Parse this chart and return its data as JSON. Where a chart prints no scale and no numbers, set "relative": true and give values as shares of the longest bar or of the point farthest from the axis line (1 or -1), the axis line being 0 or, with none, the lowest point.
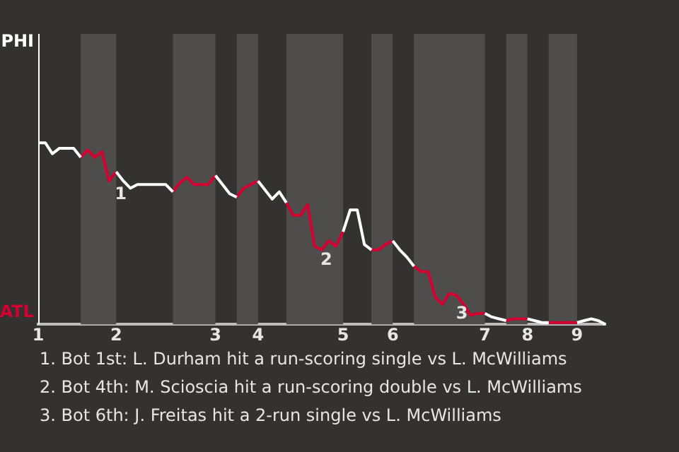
{
  "chart_data": {
    "type": "line",
    "relative": true,
    "categories": [
      "1",
      null,
      null,
      null,
      null,
      null,
      null,
      null,
      null,
      null,
      null,
      "2",
      null,
      null,
      null,
      null,
      null,
      null,
      null,
      null,
      null,
      null,
      null,
      null,
      null,
      "3",
      null,
      null,
      null,
      null,
      null,
      "4",
      null,
      null,
      null,
      null,
      null,
      null,
      null,
      null,
      null,
      null,
      null,
      "5",
      null,
      null,
      null,
      null,
      null,
      null,
      "6",
      null,
      null,
      null,
      null,
      null,
      null,
      null,
      null,
      null,
      null,
      null,
      null,
      "7",
      null,
      null,
      null,
      null,
      null,
      "8",
      null,
      null,
      null,
      null,
      null,
      null,
      "9",
      null,
      null,
      null,
      null
    ],
    "legend": false,
    "marker": "none",
    "line_style": "solid",
    "series": [
      {
        "color": "#ffffff",
        "values": [
          1,
          1,
          0.94,
          0.97,
          0.97,
          0.97,
          0.92,
          null,
          null,
          null,
          null,
          0.84,
          0.79,
          0.75,
          0.77,
          0.77,
          0.77,
          0.77,
          0.77,
          0.73,
          null,
          null,
          null,
          null,
          null,
          0.82,
          0.77,
          0.72,
          0.7,
          null,
          null,
          0.79,
          0.74,
          0.69,
          0.73,
          0.67,
          null,
          null,
          null,
          null,
          null,
          null,
          null,
          0.51,
          0.63,
          0.63,
          0.44,
          0.41,
          null,
          null,
          0.46,
          0.41,
          0.37,
          0.32,
          null,
          null,
          null,
          null,
          null,
          null,
          null,
          null,
          null,
          0.06,
          0.04,
          0.03,
          0.02,
          null,
          null,
          0.03,
          0.02,
          0.01,
          0.01,
          null,
          null,
          null,
          0.01,
          0.02,
          0.03,
          0.02,
          0
        ]
      },
      {
        "color": "#d50032",
        "values": [
          null,
          null,
          null,
          null,
          null,
          null,
          0.92,
          0.96,
          0.92,
          0.95,
          0.79,
          0.84,
          null,
          null,
          null,
          null,
          null,
          null,
          null,
          0.73,
          0.78,
          0.81,
          0.77,
          0.77,
          0.77,
          0.82,
          null,
          null,
          0.7,
          0.75,
          0.77,
          0.79,
          null,
          null,
          null,
          0.67,
          0.6,
          0.6,
          0.66,
          0.43,
          0.41,
          0.46,
          0.43,
          0.51,
          null,
          null,
          null,
          0.41,
          0.41,
          0.44,
          0.46,
          null,
          null,
          0.32,
          0.29,
          0.29,
          0.15,
          0.11,
          0.17,
          0.16,
          0.11,
          0.05,
          0.06,
          0.06,
          null,
          null,
          0.02,
          0.03,
          0.03,
          0.03,
          null,
          null,
          0.01,
          0.01,
          0.01,
          0.01,
          0.01,
          null,
          null,
          null,
          null
        ]
      }
    ],
    "annotations": [
      "PHI",
      "ATL",
      {
        "text": "1",
        "y": 0.79
      },
      {
        "text": "2",
        "y": 0.43
      },
      {
        "text": "3",
        "y": 0.05
      },
      "1. Bot 1st: L. Durham hit a run-scoring single vs L. McWilliams",
      "2. Bot 4th: M. Scioscia hit a run-scoring double vs L. McWilliams",
      "3. Bot 6th: J. Freitas hit a 2-run single vs L. McWilliams"
    ]
  }
}
